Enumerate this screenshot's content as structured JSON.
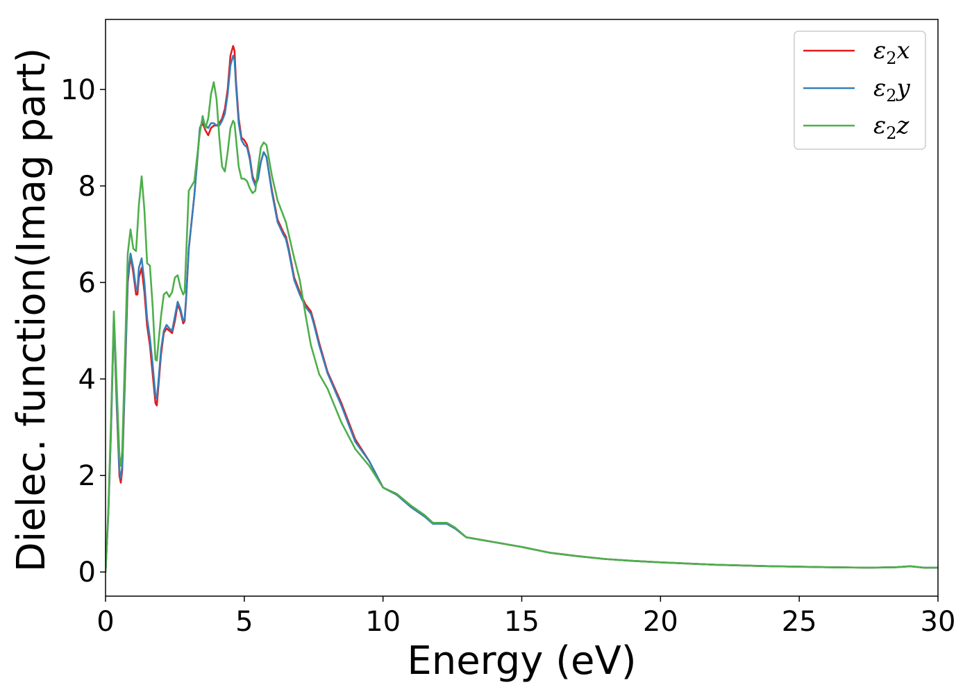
{
  "chart_data": {
    "type": "line",
    "xlabel": "Energy (eV)",
    "ylabel": "Dielec. function(Imag part)",
    "xlim": [
      0,
      30
    ],
    "ylim": [
      -0.5,
      11.45
    ],
    "xticks": [
      0,
      5,
      10,
      15,
      20,
      25,
      30
    ],
    "yticks": [
      0,
      2,
      4,
      6,
      8,
      10
    ],
    "grid": false,
    "legend_position": "top-right",
    "series": [
      {
        "name": "ε₂x",
        "legend_base": "ε",
        "legend_sub": "2",
        "legend_tail": "x",
        "color": "#e41a1c",
        "points": [
          [
            0,
            0
          ],
          [
            0.1,
            1.2
          ],
          [
            0.2,
            3.0
          ],
          [
            0.3,
            5.3
          ],
          [
            0.4,
            3.5
          ],
          [
            0.5,
            2.0
          ],
          [
            0.55,
            1.85
          ],
          [
            0.6,
            2.1
          ],
          [
            0.7,
            4.0
          ],
          [
            0.8,
            6.0
          ],
          [
            0.9,
            6.55
          ],
          [
            1.0,
            6.2
          ],
          [
            1.1,
            5.75
          ],
          [
            1.15,
            5.75
          ],
          [
            1.2,
            6.1
          ],
          [
            1.3,
            6.3
          ],
          [
            1.4,
            5.8
          ],
          [
            1.5,
            5.1
          ],
          [
            1.6,
            4.7
          ],
          [
            1.7,
            4.1
          ],
          [
            1.8,
            3.5
          ],
          [
            1.85,
            3.45
          ],
          [
            1.9,
            3.8
          ],
          [
            2.0,
            4.5
          ],
          [
            2.1,
            4.95
          ],
          [
            2.2,
            5.05
          ],
          [
            2.3,
            5.0
          ],
          [
            2.4,
            4.95
          ],
          [
            2.5,
            5.2
          ],
          [
            2.6,
            5.55
          ],
          [
            2.7,
            5.4
          ],
          [
            2.8,
            5.15
          ],
          [
            2.85,
            5.2
          ],
          [
            2.9,
            5.6
          ],
          [
            3.0,
            6.7
          ],
          [
            3.2,
            7.8
          ],
          [
            3.4,
            9.2
          ],
          [
            3.5,
            9.3
          ],
          [
            3.6,
            9.15
          ],
          [
            3.7,
            9.05
          ],
          [
            3.8,
            9.2
          ],
          [
            3.9,
            9.25
          ],
          [
            4.0,
            9.25
          ],
          [
            4.1,
            9.3
          ],
          [
            4.2,
            9.4
          ],
          [
            4.3,
            9.6
          ],
          [
            4.4,
            10.0
          ],
          [
            4.5,
            10.7
          ],
          [
            4.6,
            10.9
          ],
          [
            4.65,
            10.8
          ],
          [
            4.7,
            10.2
          ],
          [
            4.8,
            9.4
          ],
          [
            4.9,
            9.0
          ],
          [
            5.0,
            8.95
          ],
          [
            5.1,
            8.85
          ],
          [
            5.2,
            8.6
          ],
          [
            5.3,
            8.2
          ],
          [
            5.4,
            8.05
          ],
          [
            5.5,
            8.2
          ],
          [
            5.6,
            8.5
          ],
          [
            5.7,
            8.7
          ],
          [
            5.8,
            8.6
          ],
          [
            6.0,
            7.9
          ],
          [
            6.2,
            7.3
          ],
          [
            6.4,
            7.05
          ],
          [
            6.5,
            6.95
          ],
          [
            6.6,
            6.7
          ],
          [
            6.8,
            6.1
          ],
          [
            7.0,
            5.8
          ],
          [
            7.2,
            5.55
          ],
          [
            7.4,
            5.4
          ],
          [
            7.5,
            5.2
          ],
          [
            7.7,
            4.75
          ],
          [
            8.0,
            4.15
          ],
          [
            8.5,
            3.5
          ],
          [
            9.0,
            2.75
          ],
          [
            9.5,
            2.3
          ],
          [
            10.0,
            1.75
          ],
          [
            10.5,
            1.6
          ],
          [
            11.0,
            1.35
          ],
          [
            11.5,
            1.15
          ],
          [
            11.8,
            1.0
          ],
          [
            12.0,
            1.0
          ],
          [
            12.3,
            1.0
          ],
          [
            12.6,
            0.9
          ],
          [
            13.0,
            0.72
          ],
          [
            14.0,
            0.62
          ],
          [
            15.0,
            0.52
          ],
          [
            16.0,
            0.4
          ],
          [
            17.0,
            0.33
          ],
          [
            18.0,
            0.27
          ],
          [
            19.0,
            0.23
          ],
          [
            20.0,
            0.2
          ],
          [
            22.0,
            0.15
          ],
          [
            24.0,
            0.12
          ],
          [
            26.0,
            0.1
          ],
          [
            27.5,
            0.09
          ],
          [
            28.5,
            0.1
          ],
          [
            29.0,
            0.12
          ],
          [
            29.5,
            0.09
          ],
          [
            30.0,
            0.09
          ]
        ]
      },
      {
        "name": "ε₂y",
        "legend_base": "ε",
        "legend_sub": "2",
        "legend_tail": "y",
        "color": "#377eb8",
        "points": [
          [
            0,
            0
          ],
          [
            0.1,
            1.2
          ],
          [
            0.2,
            3.0
          ],
          [
            0.3,
            5.3
          ],
          [
            0.4,
            3.6
          ],
          [
            0.5,
            2.1
          ],
          [
            0.55,
            1.95
          ],
          [
            0.6,
            2.2
          ],
          [
            0.7,
            4.1
          ],
          [
            0.8,
            6.1
          ],
          [
            0.9,
            6.6
          ],
          [
            1.0,
            6.3
          ],
          [
            1.1,
            5.85
          ],
          [
            1.15,
            5.85
          ],
          [
            1.2,
            6.3
          ],
          [
            1.3,
            6.5
          ],
          [
            1.4,
            6.0
          ],
          [
            1.5,
            5.25
          ],
          [
            1.6,
            4.85
          ],
          [
            1.7,
            4.3
          ],
          [
            1.8,
            3.65
          ],
          [
            1.85,
            3.6
          ],
          [
            1.9,
            3.9
          ],
          [
            2.0,
            4.6
          ],
          [
            2.1,
            5.0
          ],
          [
            2.2,
            5.12
          ],
          [
            2.3,
            5.05
          ],
          [
            2.4,
            5.0
          ],
          [
            2.5,
            5.3
          ],
          [
            2.6,
            5.6
          ],
          [
            2.7,
            5.45
          ],
          [
            2.8,
            5.2
          ],
          [
            2.85,
            5.25
          ],
          [
            2.9,
            5.65
          ],
          [
            3.0,
            6.7
          ],
          [
            3.2,
            7.8
          ],
          [
            3.4,
            9.2
          ],
          [
            3.5,
            9.35
          ],
          [
            3.6,
            9.25
          ],
          [
            3.7,
            9.2
          ],
          [
            3.8,
            9.3
          ],
          [
            3.9,
            9.3
          ],
          [
            4.0,
            9.25
          ],
          [
            4.1,
            9.25
          ],
          [
            4.2,
            9.35
          ],
          [
            4.3,
            9.5
          ],
          [
            4.4,
            9.9
          ],
          [
            4.5,
            10.5
          ],
          [
            4.6,
            10.7
          ],
          [
            4.65,
            10.6
          ],
          [
            4.7,
            10.1
          ],
          [
            4.8,
            9.3
          ],
          [
            4.9,
            8.95
          ],
          [
            5.0,
            8.85
          ],
          [
            5.1,
            8.8
          ],
          [
            5.2,
            8.55
          ],
          [
            5.3,
            8.15
          ],
          [
            5.4,
            8.0
          ],
          [
            5.5,
            8.15
          ],
          [
            5.6,
            8.5
          ],
          [
            5.7,
            8.7
          ],
          [
            5.8,
            8.6
          ],
          [
            6.0,
            7.85
          ],
          [
            6.2,
            7.25
          ],
          [
            6.4,
            7.0
          ],
          [
            6.5,
            6.9
          ],
          [
            6.6,
            6.65
          ],
          [
            6.8,
            6.05
          ],
          [
            7.0,
            5.75
          ],
          [
            7.2,
            5.5
          ],
          [
            7.4,
            5.35
          ],
          [
            7.5,
            5.15
          ],
          [
            7.7,
            4.7
          ],
          [
            8.0,
            4.12
          ],
          [
            8.5,
            3.45
          ],
          [
            9.0,
            2.7
          ],
          [
            9.5,
            2.3
          ],
          [
            10.0,
            1.75
          ],
          [
            10.5,
            1.6
          ],
          [
            11.0,
            1.35
          ],
          [
            11.5,
            1.15
          ],
          [
            11.8,
            1.0
          ],
          [
            12.0,
            1.0
          ],
          [
            12.3,
            1.0
          ],
          [
            12.6,
            0.9
          ],
          [
            13.0,
            0.72
          ],
          [
            14.0,
            0.62
          ],
          [
            15.0,
            0.52
          ],
          [
            16.0,
            0.4
          ],
          [
            17.0,
            0.33
          ],
          [
            18.0,
            0.27
          ],
          [
            19.0,
            0.23
          ],
          [
            20.0,
            0.2
          ],
          [
            22.0,
            0.15
          ],
          [
            24.0,
            0.12
          ],
          [
            26.0,
            0.1
          ],
          [
            27.5,
            0.09
          ],
          [
            28.5,
            0.1
          ],
          [
            29.0,
            0.12
          ],
          [
            29.5,
            0.09
          ],
          [
            30.0,
            0.09
          ]
        ]
      },
      {
        "name": "ε₂z",
        "legend_base": "ε",
        "legend_sub": "2",
        "legend_tail": "z",
        "color": "#4daf4a",
        "points": [
          [
            0,
            0
          ],
          [
            0.1,
            1.3
          ],
          [
            0.2,
            3.2
          ],
          [
            0.3,
            5.4
          ],
          [
            0.4,
            3.9
          ],
          [
            0.5,
            2.4
          ],
          [
            0.55,
            2.2
          ],
          [
            0.6,
            2.5
          ],
          [
            0.7,
            4.5
          ],
          [
            0.8,
            6.6
          ],
          [
            0.9,
            7.1
          ],
          [
            1.0,
            6.7
          ],
          [
            1.1,
            6.65
          ],
          [
            1.2,
            7.6
          ],
          [
            1.3,
            8.2
          ],
          [
            1.4,
            7.5
          ],
          [
            1.5,
            6.4
          ],
          [
            1.6,
            6.35
          ],
          [
            1.7,
            5.5
          ],
          [
            1.8,
            4.4
          ],
          [
            1.85,
            4.38
          ],
          [
            1.9,
            4.7
          ],
          [
            2.0,
            5.3
          ],
          [
            2.1,
            5.75
          ],
          [
            2.2,
            5.8
          ],
          [
            2.3,
            5.7
          ],
          [
            2.4,
            5.8
          ],
          [
            2.5,
            6.1
          ],
          [
            2.6,
            6.15
          ],
          [
            2.7,
            5.9
          ],
          [
            2.8,
            5.75
          ],
          [
            2.85,
            5.8
          ],
          [
            2.9,
            6.5
          ],
          [
            3.0,
            7.9
          ],
          [
            3.2,
            8.1
          ],
          [
            3.4,
            9.1
          ],
          [
            3.5,
            9.45
          ],
          [
            3.6,
            9.2
          ],
          [
            3.7,
            9.4
          ],
          [
            3.8,
            9.9
          ],
          [
            3.9,
            10.15
          ],
          [
            4.0,
            9.8
          ],
          [
            4.1,
            9.0
          ],
          [
            4.2,
            8.4
          ],
          [
            4.3,
            8.3
          ],
          [
            4.4,
            8.7
          ],
          [
            4.5,
            9.2
          ],
          [
            4.6,
            9.35
          ],
          [
            4.65,
            9.3
          ],
          [
            4.7,
            9.0
          ],
          [
            4.8,
            8.4
          ],
          [
            4.9,
            8.15
          ],
          [
            5.0,
            8.15
          ],
          [
            5.1,
            8.1
          ],
          [
            5.2,
            7.95
          ],
          [
            5.3,
            7.85
          ],
          [
            5.4,
            7.9
          ],
          [
            5.5,
            8.4
          ],
          [
            5.6,
            8.8
          ],
          [
            5.7,
            8.9
          ],
          [
            5.8,
            8.85
          ],
          [
            6.0,
            8.2
          ],
          [
            6.2,
            7.7
          ],
          [
            6.4,
            7.4
          ],
          [
            6.5,
            7.25
          ],
          [
            6.6,
            7.0
          ],
          [
            6.8,
            6.5
          ],
          [
            7.0,
            6.05
          ],
          [
            7.2,
            5.35
          ],
          [
            7.4,
            4.7
          ],
          [
            7.5,
            4.5
          ],
          [
            7.7,
            4.1
          ],
          [
            8.0,
            3.8
          ],
          [
            8.5,
            3.1
          ],
          [
            9.0,
            2.55
          ],
          [
            9.5,
            2.2
          ],
          [
            10.0,
            1.75
          ],
          [
            10.5,
            1.62
          ],
          [
            11.0,
            1.38
          ],
          [
            11.5,
            1.18
          ],
          [
            11.8,
            1.02
          ],
          [
            12.0,
            1.02
          ],
          [
            12.3,
            1.02
          ],
          [
            12.6,
            0.92
          ],
          [
            13.0,
            0.72
          ],
          [
            14.0,
            0.62
          ],
          [
            15.0,
            0.52
          ],
          [
            16.0,
            0.4
          ],
          [
            17.0,
            0.33
          ],
          [
            18.0,
            0.27
          ],
          [
            19.0,
            0.23
          ],
          [
            20.0,
            0.2
          ],
          [
            22.0,
            0.15
          ],
          [
            24.0,
            0.12
          ],
          [
            26.0,
            0.1
          ],
          [
            27.5,
            0.09
          ],
          [
            28.5,
            0.1
          ],
          [
            29.0,
            0.12
          ],
          [
            29.5,
            0.09
          ],
          [
            30.0,
            0.09
          ]
        ]
      }
    ]
  }
}
